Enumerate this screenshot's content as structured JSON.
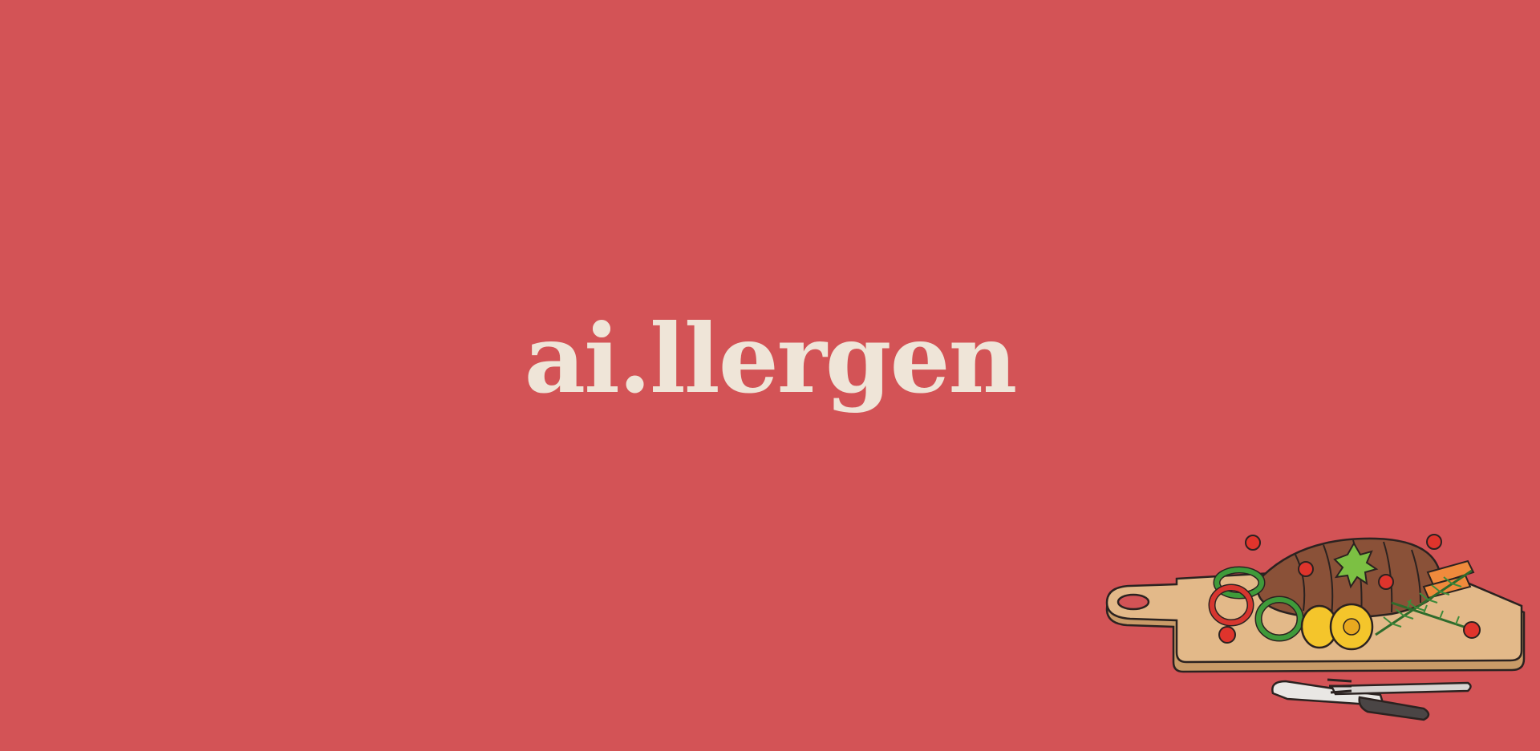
{
  "brand": {
    "logo_text": "ai.llergen"
  },
  "colors": {
    "background": "#d35356",
    "logo": "#efe5d8",
    "board": "#e3b989",
    "board_edge": "#c99b68",
    "steak": "#8a5138",
    "pepper_green": "#3f9a3a",
    "pepper_red": "#d7362f",
    "corn": "#f4c52b",
    "tomato": "#e0342c"
  },
  "illustration": {
    "icon": "cutting-board-steak-icon",
    "utensils_icon": "knife-fork-icon"
  }
}
